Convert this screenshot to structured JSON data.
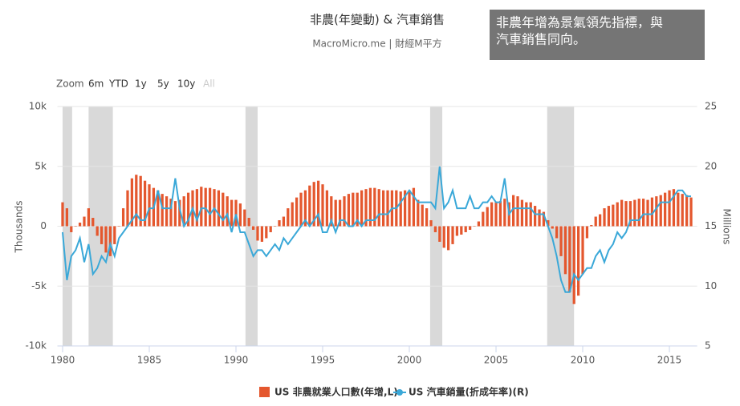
{
  "chart_data": {
    "type": "bar-line",
    "title": "非農(年變動) & 汽車銷售",
    "subtitle": "MacroMicro.me | 財經M平方",
    "annotation": [
      "非農年增為景氣領先指標，與",
      "汽車銷售同向。"
    ],
    "range_selector": {
      "label": "Zoom",
      "buttons": [
        "6m",
        "YTD",
        "1y",
        "5y",
        "10y",
        "All"
      ]
    },
    "y_label": "Thousands",
    "y2_label": "Millions",
    "xlim": [
      1979.7,
      2016.6
    ],
    "xticks": [
      1980,
      1985,
      1990,
      1995,
      2000,
      2005,
      2010,
      2015
    ],
    "ylim": [
      -10000,
      10000
    ],
    "yticks": [
      {
        "value": -10000,
        "label": "-10k"
      },
      {
        "value": -5000,
        "label": "-5k"
      },
      0,
      {
        "value": 5000,
        "label": "5k"
      },
      {
        "value": 10000,
        "label": "10k"
      }
    ],
    "y2lim": [
      5,
      25
    ],
    "y2ticks": [
      5,
      10,
      15,
      20,
      25
    ],
    "recessions": [
      [
        1980,
        1980.55
      ],
      [
        1981.5,
        1982.9
      ],
      [
        1990.55,
        1991.25
      ],
      [
        2001.2,
        2001.9
      ],
      [
        2007.95,
        2009.5
      ]
    ],
    "recession_color": "#d9d9d9",
    "x": [
      1980,
      1980.25,
      1980.5,
      1980.75,
      1981,
      1981.25,
      1981.5,
      1981.75,
      1982,
      1982.25,
      1982.5,
      1982.75,
      1983,
      1983.25,
      1983.5,
      1983.75,
      1984,
      1984.25,
      1984.5,
      1984.75,
      1985,
      1985.25,
      1985.5,
      1985.75,
      1986,
      1986.25,
      1986.5,
      1986.75,
      1987,
      1987.25,
      1987.5,
      1987.75,
      1988,
      1988.25,
      1988.5,
      1988.75,
      1989,
      1989.25,
      1989.5,
      1989.75,
      1990,
      1990.25,
      1990.5,
      1990.75,
      1991,
      1991.25,
      1991.5,
      1991.75,
      1992,
      1992.25,
      1992.5,
      1992.75,
      1993,
      1993.25,
      1993.5,
      1993.75,
      1994,
      1994.25,
      1994.5,
      1994.75,
      1995,
      1995.25,
      1995.5,
      1995.75,
      1996,
      1996.25,
      1996.5,
      1996.75,
      1997,
      1997.25,
      1997.5,
      1997.75,
      1998,
      1998.25,
      1998.5,
      1998.75,
      1999,
      1999.25,
      1999.5,
      1999.75,
      2000,
      2000.25,
      2000.5,
      2000.75,
      2001,
      2001.25,
      2001.5,
      2001.75,
      2002,
      2002.25,
      2002.5,
      2002.75,
      2003,
      2003.25,
      2003.5,
      2003.75,
      2004,
      2004.25,
      2004.5,
      2004.75,
      2005,
      2005.25,
      2005.5,
      2005.75,
      2006,
      2006.25,
      2006.5,
      2006.75,
      2007,
      2007.25,
      2007.5,
      2007.75,
      2008,
      2008.25,
      2008.5,
      2008.75,
      2009,
      2009.25,
      2009.5,
      2009.75,
      2010,
      2010.25,
      2010.5,
      2010.75,
      2011,
      2011.25,
      2011.5,
      2011.75,
      2012,
      2012.25,
      2012.5,
      2012.75,
      2013,
      2013.25,
      2013.5,
      2013.75,
      2014,
      2014.25,
      2014.5,
      2014.75,
      2015,
      2015.25,
      2015.5,
      2015.75,
      2016,
      2016.25
    ],
    "series": [
      {
        "name": "US 非農就業人口數(年增,L)",
        "type": "bar",
        "color": "#e4572e",
        "values": [
          2000,
          1500,
          -500,
          0,
          300,
          800,
          1500,
          700,
          -800,
          -1500,
          -2200,
          -2500,
          -1500,
          0,
          1500,
          3000,
          4000,
          4300,
          4200,
          3800,
          3500,
          3200,
          3000,
          2700,
          2500,
          2300,
          2100,
          2200,
          2500,
          2800,
          3000,
          3100,
          3300,
          3200,
          3200,
          3100,
          3000,
          2800,
          2500,
          2200,
          2200,
          1900,
          1400,
          700,
          -300,
          -1200,
          -1300,
          -1000,
          -500,
          0,
          500,
          800,
          1500,
          2000,
          2400,
          2800,
          3000,
          3400,
          3700,
          3800,
          3500,
          3000,
          2500,
          2200,
          2200,
          2500,
          2700,
          2800,
          2800,
          3000,
          3100,
          3200,
          3200,
          3100,
          3000,
          3000,
          3000,
          3000,
          2900,
          3000,
          3000,
          3200,
          2200,
          1800,
          1500,
          500,
          -500,
          -1300,
          -1800,
          -2000,
          -1500,
          -800,
          -700,
          -500,
          -300,
          0,
          400,
          1200,
          1600,
          2000,
          2000,
          2100,
          2300,
          2000,
          2600,
          2500,
          2200,
          2000,
          2000,
          1700,
          1400,
          1200,
          500,
          -200,
          -1000,
          -2500,
          -4000,
          -5500,
          -6500,
          -5800,
          -4000,
          -1000,
          100,
          800,
          1000,
          1500,
          1700,
          1800,
          2000,
          2200,
          2100,
          2100,
          2200,
          2300,
          2300,
          2200,
          2400,
          2500,
          2600,
          2800,
          3000,
          3100,
          2800,
          2700,
          2600,
          2400
        ]
      },
      {
        "name": "US 汽車銷量(折成年率)(R)",
        "type": "line",
        "axis": "y2",
        "color": "#3aa8d8",
        "values": [
          14.5,
          10.5,
          12.5,
          13,
          14,
          12,
          13.5,
          11,
          11.5,
          12.5,
          12,
          13.5,
          12.5,
          14,
          14.5,
          15,
          15.5,
          16,
          15.5,
          15.5,
          16.5,
          16.5,
          18,
          16.5,
          16.5,
          16.5,
          19,
          16.5,
          15,
          15.5,
          16.5,
          15.5,
          16.5,
          16.5,
          16,
          16.5,
          16,
          15.5,
          16,
          14.5,
          16,
          14.5,
          14.5,
          13.5,
          12.5,
          13,
          13,
          12.5,
          13,
          13.5,
          13,
          14,
          13.5,
          14,
          14.5,
          15,
          15.5,
          15,
          15.5,
          16,
          14.5,
          14.5,
          15.5,
          14.5,
          15.5,
          15.5,
          15,
          15,
          15.5,
          15,
          15.5,
          15.5,
          15.5,
          16,
          16,
          16,
          16.5,
          16.5,
          17,
          17.5,
          18,
          17.5,
          17,
          17,
          17,
          17,
          16.5,
          20,
          16.5,
          17,
          18,
          16.5,
          16.5,
          16.5,
          17.5,
          16.5,
          16.5,
          17,
          17,
          17.5,
          17,
          17,
          19,
          16,
          16.5,
          16.5,
          16.5,
          16.5,
          16.5,
          16,
          16,
          16,
          15,
          14,
          12.5,
          10.5,
          9.5,
          9.5,
          11,
          10.5,
          11,
          11.5,
          11.5,
          12.5,
          13,
          12,
          13,
          13.5,
          14.5,
          14,
          14.5,
          15.5,
          15.5,
          15.5,
          16,
          16,
          16,
          16.5,
          17,
          17,
          17,
          17.5,
          18,
          18,
          17.5,
          17.5
        ]
      }
    ]
  }
}
